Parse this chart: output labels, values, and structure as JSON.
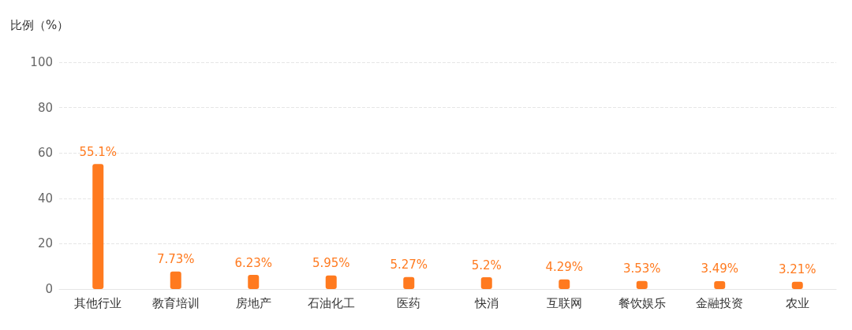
{
  "chart_data": {
    "type": "bar",
    "ylabel": "比例（%）",
    "categories": [
      "其他行业",
      "教育培训",
      "房地产",
      "石油化工",
      "医药",
      "快消",
      "互联网",
      "餐饮娱乐",
      "金融投资",
      "农业"
    ],
    "values": [
      55.1,
      7.73,
      6.23,
      5.95,
      5.27,
      5.2,
      4.29,
      3.53,
      3.49,
      3.21
    ],
    "value_labels": [
      "55.1%",
      "7.73%",
      "6.23%",
      "5.95%",
      "5.27%",
      "5.2%",
      "4.29%",
      "3.53%",
      "3.49%",
      "3.21%"
    ],
    "color": "#ff7a1f",
    "ylim": [
      0,
      100
    ],
    "yticks": [
      0,
      20,
      40,
      60,
      80,
      100
    ],
    "grid": "y"
  }
}
